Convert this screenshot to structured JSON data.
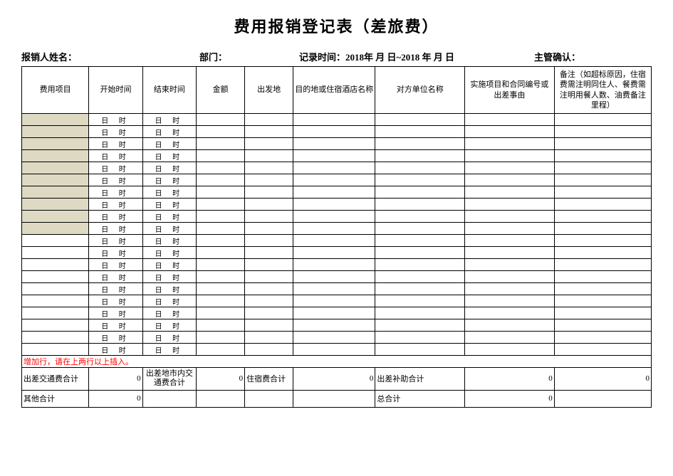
{
  "title": "费用报销登记表（差旅费）",
  "meta": {
    "name_label": "报销人姓名：",
    "dept_label": "部门：",
    "record_label": "记录时间：2018年  月  日~2018 年   月 日",
    "confirm_label": "主管确认："
  },
  "columns": {
    "item": "费用项目",
    "start": "开始时间",
    "end": "结束时间",
    "amount": "金额",
    "depart": "出发地",
    "dest": "目的地或住宿酒店名称",
    "party": "对方单位名称",
    "proj": "实施项目和合同编号或出差事由",
    "remark": "备注（如超标原因，住宿费需注明同住人、餐费需注明用餐人数、油费备注里程）"
  },
  "time_placeholder": "日 时",
  "shaded_row_count": 10,
  "plain_row_count": 10,
  "note_row": "增加行，请在上两行以上插入。",
  "summary": {
    "travel_transport": {
      "label": "出差交通费合计",
      "value": "0"
    },
    "city_transport": {
      "label": "出差地市内交通费合计",
      "value": "0"
    },
    "lodging": {
      "label": "住宿费合计",
      "value": "0"
    },
    "subsidy": {
      "label": "出差补助合计",
      "value": "0"
    },
    "subsidy_blank": {
      "value": "0"
    },
    "other": {
      "label": "其他合计",
      "value": "0"
    },
    "total": {
      "label": "总合计",
      "value": "0"
    }
  },
  "style": {
    "shaded_color": "#ddd9c3",
    "note_color": "#ff0000",
    "border_color": "#000000",
    "background": "#ffffff",
    "title_fontsize": 22,
    "body_fontsize": 11
  }
}
